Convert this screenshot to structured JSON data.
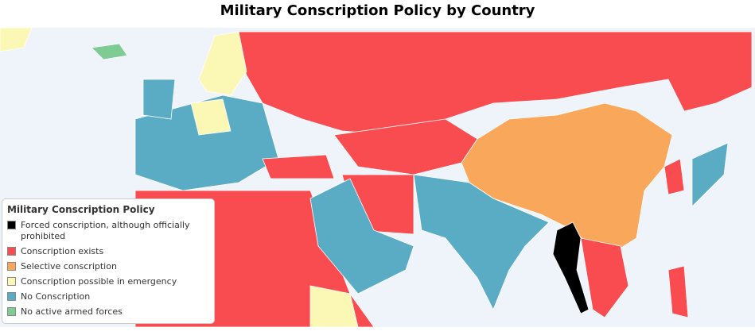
{
  "title": "Military Conscription Policy by Country",
  "legend": {
    "title": "Military Conscription Policy",
    "items": [
      {
        "label": "Forced conscription, although officially prohibited",
        "color": "#000000"
      },
      {
        "label": "Conscription exists",
        "color": "#f94c50"
      },
      {
        "label": "Selective conscription",
        "color": "#f9a85b"
      },
      {
        "label": "Conscription possible in emergency",
        "color": "#fbf7b4"
      },
      {
        "label": "No Conscription",
        "color": "#5aabc4"
      },
      {
        "label": "No active armed forces",
        "color": "#7ecb94"
      }
    ]
  }
}
